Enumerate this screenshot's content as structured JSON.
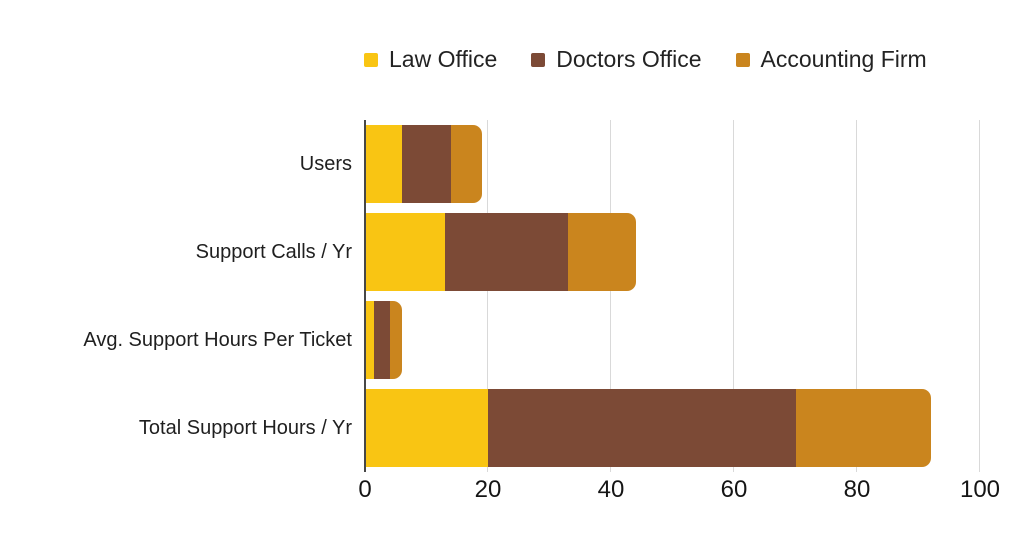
{
  "chart_data": {
    "type": "bar",
    "orientation": "horizontal",
    "stacked": true,
    "title": "",
    "xlabel": "",
    "ylabel": "",
    "xlim": [
      0,
      100
    ],
    "x_ticks": [
      0,
      20,
      40,
      60,
      80,
      100
    ],
    "grid": "vertical",
    "legend_position": "top",
    "categories": [
      "Users",
      "Support Calls / Yr",
      "Avg. Support Hours Per Ticket",
      "Total Support Hours / Yr"
    ],
    "series": [
      {
        "name": "Law Office",
        "color": "#F9C513",
        "values": [
          6,
          13,
          1.5,
          20
        ]
      },
      {
        "name": "Doctors Office",
        "color": "#7C4A36",
        "values": [
          8,
          20,
          2.5,
          50
        ]
      },
      {
        "name": "Accounting Firm",
        "color": "#CA851E",
        "values": [
          5,
          11,
          2,
          22
        ]
      }
    ],
    "category_totals": [
      19,
      44,
      6,
      92
    ]
  },
  "style": {
    "gridline_color": "#d9d9d9",
    "axis_line_color": "#474747",
    "text_color": "#1f1f1f",
    "background": "#ffffff"
  }
}
